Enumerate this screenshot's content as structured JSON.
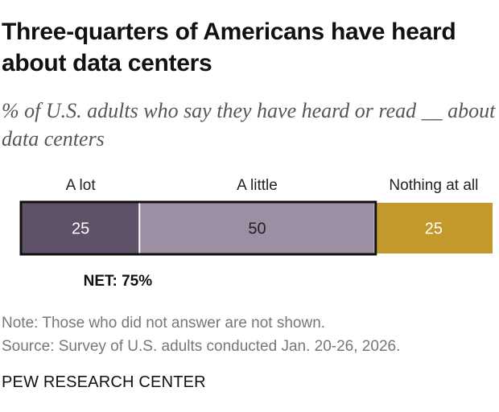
{
  "title": "Three-quarters of Americans have heard about data centers",
  "subtitle": "% of U.S. adults who say they have heard or read __ about data centers",
  "chart_data": {
    "type": "bar",
    "orientation": "horizontal-stacked",
    "categories": [
      "A lot",
      "A little",
      "Nothing at all"
    ],
    "values": [
      25,
      50,
      25
    ],
    "colors": [
      "#5f5268",
      "#9c8fa3",
      "#c4992c"
    ],
    "value_label_colors": [
      "#ffffff",
      "#222222",
      "#ffffff"
    ],
    "outlined_group_colors": "#111111",
    "outline_group": [
      "A lot",
      "A little"
    ],
    "net_label": "NET: 75%",
    "xlim": [
      0,
      100
    ]
  },
  "note": "Note: Those who did not answer are not shown.",
  "source": "Source: Survey of U.S. adults conducted Jan. 20-26, 2026.",
  "brand": "PEW RESEARCH CENTER"
}
